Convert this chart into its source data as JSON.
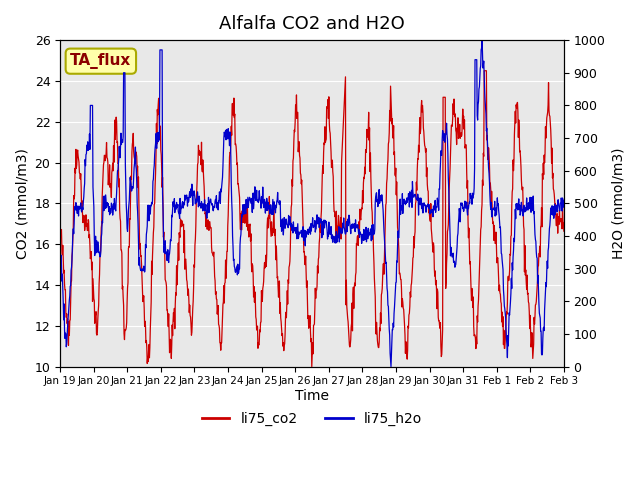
{
  "title": "Alfalfa CO2 and H2O",
  "xlabel": "Time",
  "ylabel_left": "CO2 (mmol/m3)",
  "ylabel_right": "H2O (mmol/m3)",
  "ylim_left": [
    10,
    26
  ],
  "ylim_right": [
    0,
    1000
  ],
  "yticks_left": [
    10,
    12,
    14,
    16,
    18,
    20,
    22,
    24,
    26
  ],
  "yticks_right": [
    0,
    100,
    200,
    300,
    400,
    500,
    600,
    700,
    800,
    900,
    1000
  ],
  "xtick_labels": [
    "Jan 19",
    "Jan 20",
    "Jan 21",
    "Jan 22",
    "Jan 23",
    "Jan 24",
    "Jan 25",
    "Jan 26",
    "Jan 27",
    "Jan 28",
    "Jan 29",
    "Jan 30",
    "Jan 31",
    "Feb 1",
    "Feb 2",
    "Feb 3"
  ],
  "color_co2": "#cc0000",
  "color_h2o": "#0000cc",
  "bg_color": "#e8e8e8",
  "legend_label_co2": "li75_co2",
  "legend_label_h2o": "li75_h2o",
  "annotation_text": "TA_flux",
  "annotation_bg": "#ffffaa",
  "annotation_border": "#aaaa00"
}
